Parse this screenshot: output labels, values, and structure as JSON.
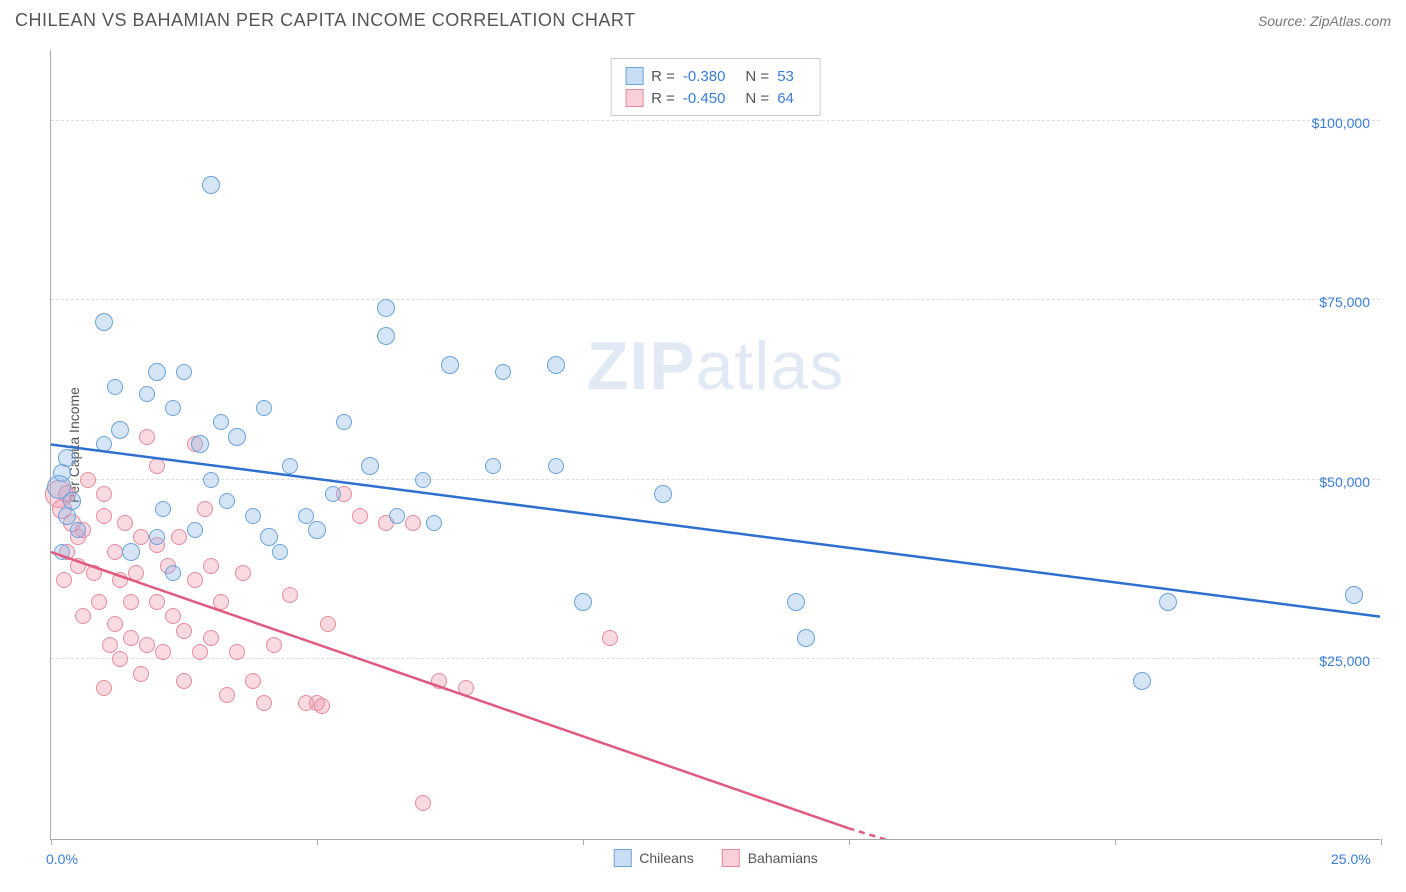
{
  "header": {
    "title": "CHILEAN VS BAHAMIAN PER CAPITA INCOME CORRELATION CHART",
    "source": "Source: ZipAtlas.com"
  },
  "watermark": {
    "part1": "ZIP",
    "part2": "atlas"
  },
  "chart": {
    "type": "scatter",
    "y_axis_title": "Per Capita Income",
    "xlim": [
      0,
      25
    ],
    "ylim": [
      0,
      110000
    ],
    "x_ticks": [
      0,
      5,
      10,
      15,
      20,
      25
    ],
    "x_tick_labels_shown": {
      "0": "0.0%",
      "25": "25.0%"
    },
    "y_gridlines": [
      25000,
      50000,
      75000,
      100000
    ],
    "y_labels": [
      "$25,000",
      "$50,000",
      "$75,000",
      "$100,000"
    ],
    "colors": {
      "series1_fill": "#87b4e6",
      "series1_stroke": "#6ba3db",
      "series2_fill": "#f096aa",
      "series2_stroke": "#e68aa0",
      "trend1": "#2f6fcf",
      "trend2": "#e05a80",
      "grid": "#dddddd",
      "axis": "#aaaaaa",
      "value_text": "#3b7dd8",
      "title_text": "#555555"
    },
    "legend_top": [
      {
        "series": 1,
        "r_label": "R =",
        "r": "-0.380",
        "n_label": "N =",
        "n": "53"
      },
      {
        "series": 2,
        "r_label": "R =",
        "r": "-0.450",
        "n_label": "N =",
        "n": "64"
      }
    ],
    "legend_bottom": [
      {
        "series": 1,
        "label": "Chileans"
      },
      {
        "series": 2,
        "label": "Bahamians"
      }
    ],
    "trend_lines": {
      "series1": {
        "x1": 0,
        "y1": 55000,
        "x2": 25,
        "y2": 31000
      },
      "series2": {
        "x1": 0,
        "y1": 40000,
        "x2_solid": 15,
        "y2_solid": 1500,
        "x2_dash": 17,
        "y2_dash": -3000
      }
    },
    "series1_points": [
      {
        "x": 0.2,
        "y": 51000,
        "r": 9
      },
      {
        "x": 0.3,
        "y": 53000,
        "r": 9
      },
      {
        "x": 0.15,
        "y": 49000,
        "r": 12
      },
      {
        "x": 0.4,
        "y": 47000,
        "r": 9
      },
      {
        "x": 0.3,
        "y": 45000,
        "r": 9
      },
      {
        "x": 0.5,
        "y": 43000,
        "r": 8
      },
      {
        "x": 0.2,
        "y": 40000,
        "r": 8
      },
      {
        "x": 1.0,
        "y": 72000,
        "r": 9
      },
      {
        "x": 3.0,
        "y": 91000,
        "r": 9
      },
      {
        "x": 1.3,
        "y": 57000,
        "r": 9
      },
      {
        "x": 1.8,
        "y": 62000,
        "r": 8
      },
      {
        "x": 2.0,
        "y": 65000,
        "r": 9
      },
      {
        "x": 2.5,
        "y": 65000,
        "r": 8
      },
      {
        "x": 2.3,
        "y": 60000,
        "r": 8
      },
      {
        "x": 2.8,
        "y": 55000,
        "r": 9
      },
      {
        "x": 3.2,
        "y": 58000,
        "r": 8
      },
      {
        "x": 3.5,
        "y": 56000,
        "r": 9
      },
      {
        "x": 3.0,
        "y": 50000,
        "r": 8
      },
      {
        "x": 3.3,
        "y": 47000,
        "r": 8
      },
      {
        "x": 3.8,
        "y": 45000,
        "r": 8
      },
      {
        "x": 4.1,
        "y": 42000,
        "r": 9
      },
      {
        "x": 4.5,
        "y": 52000,
        "r": 8
      },
      {
        "x": 4.0,
        "y": 60000,
        "r": 8
      },
      {
        "x": 4.8,
        "y": 45000,
        "r": 8
      },
      {
        "x": 5.0,
        "y": 43000,
        "r": 9
      },
      {
        "x": 5.3,
        "y": 48000,
        "r": 8
      },
      {
        "x": 5.5,
        "y": 58000,
        "r": 8
      },
      {
        "x": 6.0,
        "y": 52000,
        "r": 9
      },
      {
        "x": 6.3,
        "y": 74000,
        "r": 9
      },
      {
        "x": 6.3,
        "y": 70000,
        "r": 9
      },
      {
        "x": 6.5,
        "y": 45000,
        "r": 8
      },
      {
        "x": 7.0,
        "y": 50000,
        "r": 8
      },
      {
        "x": 7.2,
        "y": 44000,
        "r": 8
      },
      {
        "x": 7.5,
        "y": 66000,
        "r": 9
      },
      {
        "x": 8.5,
        "y": 65000,
        "r": 8
      },
      {
        "x": 8.3,
        "y": 52000,
        "r": 8
      },
      {
        "x": 9.5,
        "y": 66000,
        "r": 9
      },
      {
        "x": 9.5,
        "y": 52000,
        "r": 8
      },
      {
        "x": 10.0,
        "y": 33000,
        "r": 9
      },
      {
        "x": 11.5,
        "y": 48000,
        "r": 9
      },
      {
        "x": 14.0,
        "y": 33000,
        "r": 9
      },
      {
        "x": 14.2,
        "y": 28000,
        "r": 9
      },
      {
        "x": 20.5,
        "y": 22000,
        "r": 9
      },
      {
        "x": 21.0,
        "y": 33000,
        "r": 9
      },
      {
        "x": 24.5,
        "y": 34000,
        "r": 9
      },
      {
        "x": 2.0,
        "y": 42000,
        "r": 8
      },
      {
        "x": 1.5,
        "y": 40000,
        "r": 9
      },
      {
        "x": 2.3,
        "y": 37000,
        "r": 8
      },
      {
        "x": 1.0,
        "y": 55000,
        "r": 8
      },
      {
        "x": 4.3,
        "y": 40000,
        "r": 8
      },
      {
        "x": 2.7,
        "y": 43000,
        "r": 8
      },
      {
        "x": 1.2,
        "y": 63000,
        "r": 8
      },
      {
        "x": 2.1,
        "y": 46000,
        "r": 8
      }
    ],
    "series2_points": [
      {
        "x": 0.15,
        "y": 48000,
        "r": 14
      },
      {
        "x": 0.2,
        "y": 46000,
        "r": 10
      },
      {
        "x": 0.3,
        "y": 48000,
        "r": 9
      },
      {
        "x": 0.4,
        "y": 44000,
        "r": 9
      },
      {
        "x": 0.5,
        "y": 42000,
        "r": 8
      },
      {
        "x": 0.3,
        "y": 40000,
        "r": 8
      },
      {
        "x": 0.6,
        "y": 43000,
        "r": 8
      },
      {
        "x": 0.5,
        "y": 38000,
        "r": 8
      },
      {
        "x": 0.8,
        "y": 37000,
        "r": 8
      },
      {
        "x": 1.0,
        "y": 45000,
        "r": 8
      },
      {
        "x": 1.0,
        "y": 48000,
        "r": 8
      },
      {
        "x": 1.2,
        "y": 40000,
        "r": 8
      },
      {
        "x": 1.3,
        "y": 36000,
        "r": 8
      },
      {
        "x": 1.5,
        "y": 33000,
        "r": 8
      },
      {
        "x": 1.2,
        "y": 30000,
        "r": 8
      },
      {
        "x": 1.5,
        "y": 28000,
        "r": 8
      },
      {
        "x": 1.8,
        "y": 27000,
        "r": 8
      },
      {
        "x": 1.3,
        "y": 25000,
        "r": 8
      },
      {
        "x": 1.7,
        "y": 23000,
        "r": 8
      },
      {
        "x": 1.0,
        "y": 21000,
        "r": 8
      },
      {
        "x": 1.7,
        "y": 42000,
        "r": 8
      },
      {
        "x": 2.0,
        "y": 41000,
        "r": 8
      },
      {
        "x": 2.2,
        "y": 38000,
        "r": 8
      },
      {
        "x": 2.0,
        "y": 33000,
        "r": 8
      },
      {
        "x": 2.3,
        "y": 31000,
        "r": 8
      },
      {
        "x": 2.5,
        "y": 29000,
        "r": 8
      },
      {
        "x": 2.5,
        "y": 22000,
        "r": 8
      },
      {
        "x": 2.8,
        "y": 26000,
        "r": 8
      },
      {
        "x": 3.0,
        "y": 28000,
        "r": 8
      },
      {
        "x": 1.8,
        "y": 56000,
        "r": 8
      },
      {
        "x": 2.0,
        "y": 52000,
        "r": 8
      },
      {
        "x": 2.7,
        "y": 55000,
        "r": 8
      },
      {
        "x": 3.0,
        "y": 38000,
        "r": 8
      },
      {
        "x": 3.2,
        "y": 33000,
        "r": 8
      },
      {
        "x": 3.5,
        "y": 26000,
        "r": 8
      },
      {
        "x": 3.8,
        "y": 22000,
        "r": 8
      },
      {
        "x": 4.0,
        "y": 19000,
        "r": 8
      },
      {
        "x": 4.5,
        "y": 34000,
        "r": 8
      },
      {
        "x": 4.8,
        "y": 19000,
        "r": 8
      },
      {
        "x": 5.0,
        "y": 19000,
        "r": 8
      },
      {
        "x": 5.1,
        "y": 18500,
        "r": 8
      },
      {
        "x": 5.5,
        "y": 48000,
        "r": 8
      },
      {
        "x": 5.8,
        "y": 45000,
        "r": 8
      },
      {
        "x": 6.3,
        "y": 44000,
        "r": 8
      },
      {
        "x": 6.8,
        "y": 44000,
        "r": 8
      },
      {
        "x": 7.3,
        "y": 22000,
        "r": 8
      },
      {
        "x": 7.8,
        "y": 21000,
        "r": 8
      },
      {
        "x": 10.5,
        "y": 28000,
        "r": 8
      },
      {
        "x": 7.0,
        "y": 5000,
        "r": 8
      },
      {
        "x": 0.7,
        "y": 50000,
        "r": 8
      },
      {
        "x": 0.9,
        "y": 33000,
        "r": 8
      },
      {
        "x": 1.1,
        "y": 27000,
        "r": 8
      },
      {
        "x": 1.6,
        "y": 37000,
        "r": 8
      },
      {
        "x": 2.1,
        "y": 26000,
        "r": 8
      },
      {
        "x": 2.4,
        "y": 42000,
        "r": 8
      },
      {
        "x": 2.7,
        "y": 36000,
        "r": 8
      },
      {
        "x": 3.3,
        "y": 20000,
        "r": 8
      },
      {
        "x": 3.6,
        "y": 37000,
        "r": 8
      },
      {
        "x": 4.2,
        "y": 27000,
        "r": 8
      },
      {
        "x": 1.4,
        "y": 44000,
        "r": 8
      },
      {
        "x": 0.25,
        "y": 36000,
        "r": 8
      },
      {
        "x": 0.6,
        "y": 31000,
        "r": 8
      },
      {
        "x": 2.9,
        "y": 46000,
        "r": 8
      },
      {
        "x": 5.2,
        "y": 30000,
        "r": 8
      }
    ]
  }
}
